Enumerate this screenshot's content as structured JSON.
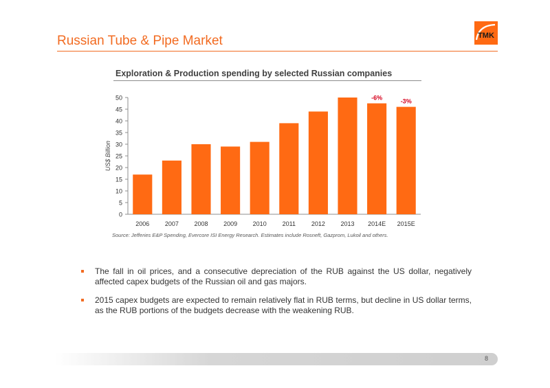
{
  "slide": {
    "title": "Russian Tube & Pipe Market",
    "page_number": "8",
    "logo_text": "TMK"
  },
  "chart_data": {
    "type": "bar",
    "title": "Exploration & Production spending by selected Russian companies",
    "ylabel": "US$ Billion",
    "xlabel": "",
    "categories": [
      "2006",
      "2007",
      "2008",
      "2009",
      "2010",
      "2011",
      "2012",
      "2013",
      "2014E",
      "2015E"
    ],
    "values": [
      17,
      23,
      30,
      29,
      31,
      39,
      44,
      50,
      47.5,
      46
    ],
    "data_labels": [
      {
        "category": "2014E",
        "text": "-6%"
      },
      {
        "category": "2015E",
        "text": "-3%"
      }
    ],
    "ylim": [
      0,
      50
    ],
    "yticks": [
      0,
      5,
      10,
      15,
      20,
      25,
      30,
      35,
      40,
      45,
      50
    ],
    "grid": false,
    "bar_color": "#ff6a13",
    "label_color": "#d6001c",
    "source": "Source: Jefferies E&P Spending, Evercore ISI Energy Research.  Estimates include Rosneft, Gazprom, Lukoil and others."
  },
  "bullets": [
    "The fall in oil prices, and a consecutive depreciation of the RUB against the US dollar, negatively affected capex budgets of the Russian oil and gas majors.",
    "2015 capex budgets are expected to remain relatively flat in RUB terms, but decline in US dollar terms, as the RUB portions of the budgets decrease with the weakening RUB."
  ],
  "colors": {
    "accent": "#f26b21",
    "logo_background": "#ff6a13"
  },
  "icons": {
    "logo": "tmk-logo"
  }
}
